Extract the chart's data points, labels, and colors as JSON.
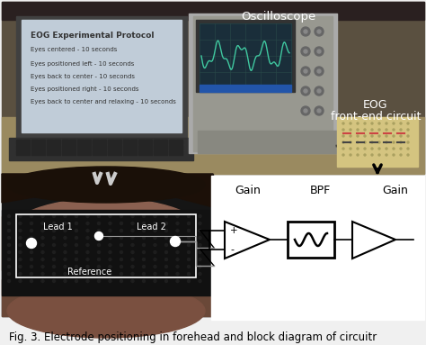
{
  "title": "Fig. 3. Electrode positioning in forehead and block diagram of circuitr",
  "title_fontsize": 8.5,
  "bg_color": "#f0f0f0",
  "oscilloscope_label": "Oscilloscope",
  "eog_label1": "EOG",
  "eog_label2": "front-end circuit",
  "lead1_label": "Lead 1",
  "lead2_label": "Lead 2",
  "reference_label": "Reference",
  "gain_label1": "Gain",
  "bpf_label": "BPF",
  "gain_label2": "Gain",
  "top_photo_bg": "#5a5040",
  "desk_color": "#b8a878",
  "laptop_screen_bg": "#c8d8e8",
  "laptop_body_color": "#383838",
  "osc_body_color": "#b0b0a8",
  "osc_screen_color": "#1a2e3a",
  "osc_screen_text": "#40c8a0",
  "circuit_board_color": "#c8b878",
  "headband_color": "#1a1a1a",
  "skin_color": "#a87060",
  "hair_color": "#1c1008",
  "white": "#ffffff",
  "black": "#000000",
  "gray_light": "#d0d0d0"
}
